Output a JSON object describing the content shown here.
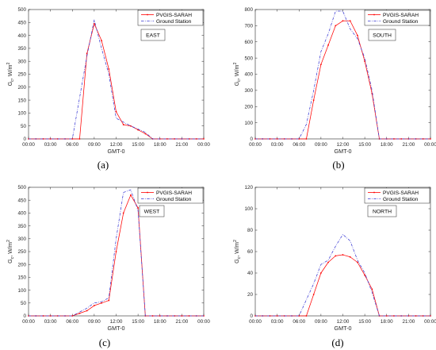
{
  "legend": {
    "pvgis": "PVGIS-SARAH",
    "ground": "Ground Station"
  },
  "colors": {
    "pvgis": "#ff0000",
    "ground": "#3b3bd4",
    "axis": "#262626",
    "grid": "#e6e6e6"
  },
  "chart_data": [
    {
      "type": "line",
      "panel_label": "(a)",
      "annotation": "EAST",
      "xlabel": "GMT-0",
      "ylabel": "G",
      "ylabel_sub": "c",
      "ylabel_unit": ", W/m",
      "ylabel_sup": "2",
      "ylim": [
        0,
        500
      ],
      "yticks": [
        0,
        50,
        100,
        150,
        200,
        250,
        300,
        350,
        400,
        450,
        500
      ],
      "xlim": [
        0,
        24
      ],
      "xticks": [
        "00:00",
        "03:00",
        "06:00",
        "09:00",
        "12:00",
        "15:00",
        "18:00",
        "21:00",
        "00:00"
      ],
      "legend_position": "top-right",
      "series": [
        {
          "name": "PVGIS-SARAH",
          "style": "solid-dot",
          "x": [
            0,
            1,
            2,
            3,
            4,
            5,
            6,
            7,
            8,
            9,
            10,
            11,
            12,
            13,
            14,
            15,
            16,
            17,
            18,
            19,
            20,
            21,
            22,
            23,
            24
          ],
          "y": [
            0,
            0,
            0,
            0,
            0,
            0,
            0,
            0,
            330,
            445,
            380,
            270,
            105,
            55,
            50,
            35,
            20,
            0,
            0,
            0,
            0,
            0,
            0,
            0,
            0
          ]
        },
        {
          "name": "Ground Station",
          "style": "dashdot",
          "x": [
            0,
            1,
            2,
            3,
            4,
            5,
            6,
            7,
            8,
            9,
            10,
            11,
            12,
            13,
            14,
            15,
            16,
            17,
            18,
            19,
            20,
            21,
            22,
            23,
            24
          ],
          "y": [
            0,
            0,
            0,
            0,
            0,
            0,
            0,
            160,
            320,
            460,
            350,
            250,
            80,
            65,
            50,
            38,
            25,
            0,
            0,
            0,
            0,
            0,
            0,
            0,
            0
          ]
        }
      ]
    },
    {
      "type": "line",
      "panel_label": "(b)",
      "annotation": "SOUTH",
      "xlabel": "GMT-0",
      "ylabel": "G",
      "ylabel_sub": "c",
      "ylabel_unit": ", W/m",
      "ylabel_sup": "2",
      "ylim": [
        0,
        800
      ],
      "yticks": [
        0,
        100,
        200,
        300,
        400,
        500,
        600,
        700,
        800
      ],
      "xlim": [
        0,
        24
      ],
      "xticks": [
        "00:00",
        "03:00",
        "06:00",
        "09:00",
        "12:00",
        "15:00",
        "18:00",
        "21:00",
        "00:00"
      ],
      "legend_position": "top-right",
      "series": [
        {
          "name": "PVGIS-SARAH",
          "style": "solid-dot",
          "x": [
            0,
            1,
            2,
            3,
            4,
            5,
            6,
            7,
            8,
            9,
            10,
            11,
            12,
            13,
            14,
            15,
            16,
            17,
            18,
            19,
            20,
            21,
            22,
            23,
            24
          ],
          "y": [
            0,
            0,
            0,
            0,
            0,
            0,
            0,
            0,
            240,
            460,
            580,
            700,
            730,
            730,
            640,
            480,
            280,
            0,
            0,
            0,
            0,
            0,
            0,
            0,
            0
          ]
        },
        {
          "name": "Ground Station",
          "style": "dashdot",
          "x": [
            0,
            1,
            2,
            3,
            4,
            5,
            6,
            7,
            8,
            9,
            10,
            11,
            12,
            13,
            14,
            15,
            16,
            17,
            18,
            19,
            20,
            21,
            22,
            23,
            24
          ],
          "y": [
            0,
            0,
            0,
            0,
            0,
            0,
            0,
            90,
            300,
            540,
            650,
            790,
            790,
            680,
            620,
            500,
            300,
            0,
            0,
            0,
            0,
            0,
            0,
            0,
            0
          ]
        }
      ]
    },
    {
      "type": "line",
      "panel_label": "(c)",
      "annotation": "WEST",
      "xlabel": "GMT-0",
      "ylabel": "G",
      "ylabel_sub": "c",
      "ylabel_unit": ", W/m",
      "ylabel_sup": "2",
      "ylim": [
        0,
        500
      ],
      "yticks": [
        0,
        50,
        100,
        150,
        200,
        250,
        300,
        350,
        400,
        450,
        500
      ],
      "xlim": [
        0,
        24
      ],
      "xticks": [
        "00:00",
        "03:00",
        "06:00",
        "09:00",
        "12:00",
        "15:00",
        "18:00",
        "21:00",
        "00:00"
      ],
      "legend_position": "top-right",
      "series": [
        {
          "name": "PVGIS-SARAH",
          "style": "solid-dot",
          "x": [
            0,
            1,
            2,
            3,
            4,
            5,
            6,
            7,
            8,
            9,
            10,
            11,
            12,
            13,
            14,
            15,
            16,
            17,
            18,
            19,
            20,
            21,
            22,
            23,
            24
          ],
          "y": [
            0,
            0,
            0,
            0,
            0,
            0,
            0,
            10,
            20,
            40,
            50,
            60,
            250,
            400,
            470,
            420,
            0,
            0,
            0,
            0,
            0,
            0,
            0,
            0,
            0
          ]
        },
        {
          "name": "Ground Station",
          "style": "dashdot",
          "x": [
            0,
            1,
            2,
            3,
            4,
            5,
            6,
            7,
            8,
            9,
            10,
            11,
            12,
            13,
            14,
            15,
            16,
            17,
            18,
            19,
            20,
            21,
            22,
            23,
            24
          ],
          "y": [
            0,
            0,
            0,
            0,
            0,
            0,
            0,
            15,
            30,
            50,
            55,
            70,
            300,
            480,
            490,
            410,
            0,
            0,
            0,
            0,
            0,
            0,
            0,
            0,
            0
          ]
        }
      ]
    },
    {
      "type": "line",
      "panel_label": "(d)",
      "annotation": "NORTH",
      "xlabel": "GMT-0",
      "ylabel": "G",
      "ylabel_sub": "c",
      "ylabel_unit": ", W/m",
      "ylabel_sup": "2",
      "ylim": [
        0,
        120
      ],
      "yticks": [
        0,
        20,
        40,
        60,
        80,
        100,
        120
      ],
      "xlim": [
        0,
        24
      ],
      "xticks": [
        "00:00",
        "03:00",
        "06:00",
        "09:00",
        "12:00",
        "15:00",
        "18:00",
        "21:00",
        "00:00"
      ],
      "legend_position": "top-right",
      "series": [
        {
          "name": "PVGIS-SARAH",
          "style": "solid-dot",
          "x": [
            0,
            1,
            2,
            3,
            4,
            5,
            6,
            7,
            8,
            9,
            10,
            11,
            12,
            13,
            14,
            15,
            16,
            17,
            18,
            19,
            20,
            21,
            22,
            23,
            24
          ],
          "y": [
            0,
            0,
            0,
            0,
            0,
            0,
            0,
            0,
            20,
            40,
            50,
            56,
            57,
            55,
            50,
            38,
            25,
            0,
            0,
            0,
            0,
            0,
            0,
            0,
            0
          ]
        },
        {
          "name": "Ground Station",
          "style": "dashdot",
          "x": [
            0,
            1,
            2,
            3,
            4,
            5,
            6,
            7,
            8,
            9,
            10,
            11,
            12,
            13,
            14,
            15,
            16,
            17,
            18,
            19,
            20,
            21,
            22,
            23,
            24
          ],
          "y": [
            0,
            0,
            0,
            0,
            0,
            0,
            0,
            15,
            30,
            48,
            52,
            65,
            76,
            70,
            52,
            40,
            22,
            0,
            0,
            0,
            0,
            0,
            0,
            0,
            0
          ]
        }
      ]
    }
  ]
}
